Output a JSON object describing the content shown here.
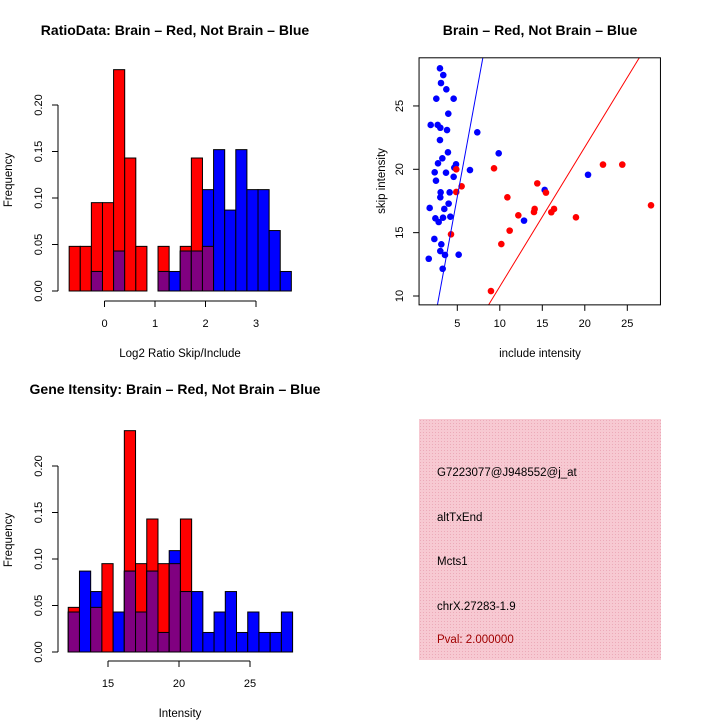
{
  "colors": {
    "red": "#ff0000",
    "blue": "#0000ff",
    "overlap": "#800080",
    "panel": "#f5c4ce",
    "pval": "#a00000"
  },
  "chart_data": [
    {
      "id": "ratio",
      "type": "bar",
      "subtype": "overlaid-histogram",
      "title": "RatioData: Brain – Red, Not Brain – Blue",
      "xlabel": "Log2 Ratio Skip/Include",
      "ylabel": "Frequency",
      "xticks": [
        "0",
        "1",
        "2",
        "3"
      ],
      "xtick_values": [
        0,
        1,
        2,
        3
      ],
      "yticks": [
        "0.00",
        "0.05",
        "0.10",
        "0.15",
        "0.20"
      ],
      "ytick_values": [
        0,
        0.05,
        0.1,
        0.15,
        0.2
      ],
      "bin_start": -0.7,
      "bin_width": 0.22,
      "series": [
        {
          "name": "Brain",
          "color": "red",
          "values": [
            0.048,
            0.048,
            0.095,
            0.095,
            0.238,
            0.143,
            0.048,
            0,
            0.048,
            0,
            0.048,
            0.143,
            0.048,
            0,
            0,
            0,
            0,
            0,
            0,
            0
          ]
        },
        {
          "name": "Not Brain",
          "color": "blue",
          "values": [
            0,
            0,
            0.021,
            0,
            0.043,
            0,
            0,
            0,
            0.021,
            0.021,
            0.043,
            0.043,
            0.109,
            0.152,
            0.087,
            0.152,
            0.109,
            0.109,
            0.065,
            0.021
          ]
        }
      ]
    },
    {
      "id": "scatter",
      "type": "scatter",
      "title": "Brain – Red, Not Brain – Blue",
      "xlabel": "include intensity",
      "ylabel": "skip intensity",
      "xticks": [
        "5",
        "10",
        "15",
        "20",
        "25"
      ],
      "xtick_values": [
        5,
        10,
        15,
        20,
        25
      ],
      "yticks": [
        "10",
        "15",
        "20",
        "25"
      ],
      "ytick_values": [
        10,
        15,
        20,
        25
      ],
      "xlim": [
        0.5,
        28.9
      ],
      "ylim": [
        9.3,
        28.8
      ],
      "series": [
        {
          "name": "Not Brain",
          "color": "blue",
          "points": [
            [
              2.96,
              27.97
            ],
            [
              3.35,
              27.44
            ],
            [
              3.08,
              26.81
            ],
            [
              3.71,
              26.31
            ],
            [
              2.53,
              25.57
            ],
            [
              4.57,
              25.57
            ],
            [
              3.94,
              24.39
            ],
            [
              1.87,
              23.5
            ],
            [
              2.69,
              23.5
            ],
            [
              3.0,
              23.28
            ],
            [
              3.79,
              23.1
            ],
            [
              7.35,
              22.92
            ],
            [
              2.96,
              22.31
            ],
            [
              3.9,
              21.34
            ],
            [
              9.87,
              21.26
            ],
            [
              3.24,
              20.87
            ],
            [
              2.73,
              20.47
            ],
            [
              4.85,
              20.39
            ],
            [
              4.65,
              20.13
            ],
            [
              6.49,
              19.94
            ],
            [
              2.34,
              19.76
            ],
            [
              3.67,
              19.73
            ],
            [
              4.57,
              19.41
            ],
            [
              2.49,
              19.1
            ],
            [
              3.04,
              18.18
            ],
            [
              4.1,
              18.18
            ],
            [
              3.0,
              17.79
            ],
            [
              3.98,
              17.29
            ],
            [
              1.75,
              16.95
            ],
            [
              3.47,
              16.87
            ],
            [
              2.42,
              16.13
            ],
            [
              2.81,
              15.84
            ],
            [
              3.32,
              16.18
            ],
            [
              4.18,
              16.26
            ],
            [
              2.3,
              14.5
            ],
            [
              3.12,
              14.08
            ],
            [
              3.0,
              13.55
            ],
            [
              3.55,
              13.24
            ],
            [
              5.16,
              13.26
            ],
            [
              1.64,
              12.94
            ],
            [
              3.28,
              12.15
            ],
            [
              20.38,
              19.57
            ],
            [
              15.28,
              18.37
            ],
            [
              12.85,
              15.95
            ]
          ]
        },
        {
          "name": "Brain",
          "color": "red",
          "points": [
            [
              4.88,
              20.0
            ],
            [
              5.51,
              18.66
            ],
            [
              4.88,
              18.21
            ],
            [
              4.26,
              14.87
            ],
            [
              9.32,
              20.08
            ],
            [
              10.89,
              17.79
            ],
            [
              11.16,
              15.16
            ],
            [
              10.18,
              14.1
            ],
            [
              8.96,
              10.39
            ],
            [
              22.14,
              20.37
            ],
            [
              24.41,
              20.37
            ],
            [
              14.41,
              18.89
            ],
            [
              15.43,
              18.16
            ],
            [
              14.1,
              16.87
            ],
            [
              14.02,
              16.63
            ],
            [
              16.38,
              16.87
            ],
            [
              16.06,
              16.61
            ],
            [
              12.18,
              16.37
            ],
            [
              18.96,
              16.21
            ],
            [
              27.79,
              17.16
            ]
          ]
        }
      ],
      "lines": [
        {
          "color": "blue",
          "intercept": -0.42,
          "slope": 3.65
        },
        {
          "color": "red",
          "intercept": -0.25,
          "slope": 1.1
        }
      ]
    },
    {
      "id": "intensity",
      "type": "bar",
      "subtype": "overlaid-histogram",
      "title": "Gene Itensity: Brain – Red, Not Brain – Blue",
      "xlabel": "Intensity",
      "ylabel": "Frequency",
      "xticks": [
        "15",
        "20",
        "25"
      ],
      "xtick_values": [
        15,
        20,
        25
      ],
      "yticks": [
        "0.00",
        "0.05",
        "0.10",
        "0.15",
        "0.20"
      ],
      "ytick_values": [
        0,
        0.05,
        0.1,
        0.15,
        0.2
      ],
      "bin_start": 12.2,
      "bin_width": 0.79,
      "series": [
        {
          "name": "Brain",
          "color": "red",
          "values": [
            0.048,
            0,
            0.048,
            0.095,
            0,
            0.238,
            0.095,
            0.143,
            0.095,
            0.095,
            0.143,
            0,
            0,
            0,
            0,
            0,
            0,
            0,
            0,
            0
          ]
        },
        {
          "name": "Not Brain",
          "color": "blue",
          "values": [
            0.043,
            0.087,
            0.065,
            0,
            0.043,
            0.087,
            0.043,
            0.087,
            0.021,
            0.109,
            0.065,
            0.065,
            0.021,
            0.043,
            0.065,
            0.021,
            0.043,
            0.021,
            0.021,
            0.043
          ]
        }
      ]
    }
  ],
  "info_panel": {
    "probe": "G7223077@J948552@j_at",
    "event": "altTxEnd",
    "gene": "Mcts1",
    "location": "chrX.27283-1.9",
    "pval": "Pval: 2.000000"
  }
}
